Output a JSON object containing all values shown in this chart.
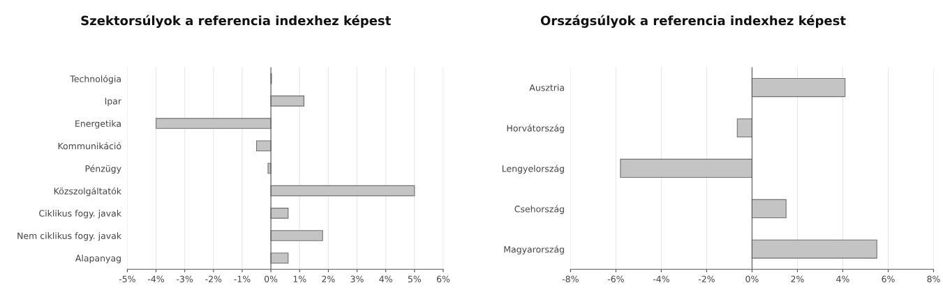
{
  "chart_data": [
    {
      "type": "bar",
      "orientation": "horizontal",
      "title": "Szektorsúlyok a referencia indexhez képest",
      "categories": [
        "Technológia",
        "Ipar",
        "Energetika",
        "Kommunikáció",
        "Pénzügy",
        "Közszolgáltatók",
        "Ciklikus fogy. javak",
        "Nem ciklikus fogy. javak",
        "Alapanyag"
      ],
      "values": [
        0.02,
        1.15,
        -4.0,
        -0.5,
        -0.1,
        5.0,
        0.6,
        1.8,
        0.6
      ],
      "color": "#c4c4c4",
      "xlim": [
        -5,
        6
      ],
      "xticks": [
        {
          "value": -5,
          "label": "-5%"
        },
        {
          "value": -4,
          "label": "-4%"
        },
        {
          "value": -3,
          "label": "-3%"
        },
        {
          "value": -2,
          "label": "-2%"
        },
        {
          "value": -1,
          "label": "-1%"
        },
        {
          "value": 0,
          "label": "0%"
        },
        {
          "value": 1,
          "label": "1%"
        },
        {
          "value": 2,
          "label": "2%"
        },
        {
          "value": 3,
          "label": "3%"
        },
        {
          "value": 4,
          "label": "4%"
        },
        {
          "value": 5,
          "label": "5%"
        },
        {
          "value": 6,
          "label": "6%"
        }
      ],
      "grid": "x"
    },
    {
      "type": "bar",
      "orientation": "horizontal",
      "title": "Országsúlyok a referencia indexhez képest",
      "categories": [
        "Ausztria",
        "Horvátország",
        "Lengyelország",
        "Csehország",
        "Magyarország"
      ],
      "values": [
        4.1,
        -0.65,
        -5.8,
        1.5,
        5.5
      ],
      "color": "#c4c4c4",
      "xlim": [
        -8,
        8
      ],
      "xticks": [
        {
          "value": -8,
          "label": "-8%"
        },
        {
          "value": -6,
          "label": "-6%"
        },
        {
          "value": -4,
          "label": "-4%"
        },
        {
          "value": -2,
          "label": "-2%"
        },
        {
          "value": 0,
          "label": "0%"
        },
        {
          "value": 2,
          "label": "2%"
        },
        {
          "value": 4,
          "label": "4%"
        },
        {
          "value": 6,
          "label": "6%"
        },
        {
          "value": 8,
          "label": "8%"
        }
      ],
      "grid": "x"
    }
  ]
}
